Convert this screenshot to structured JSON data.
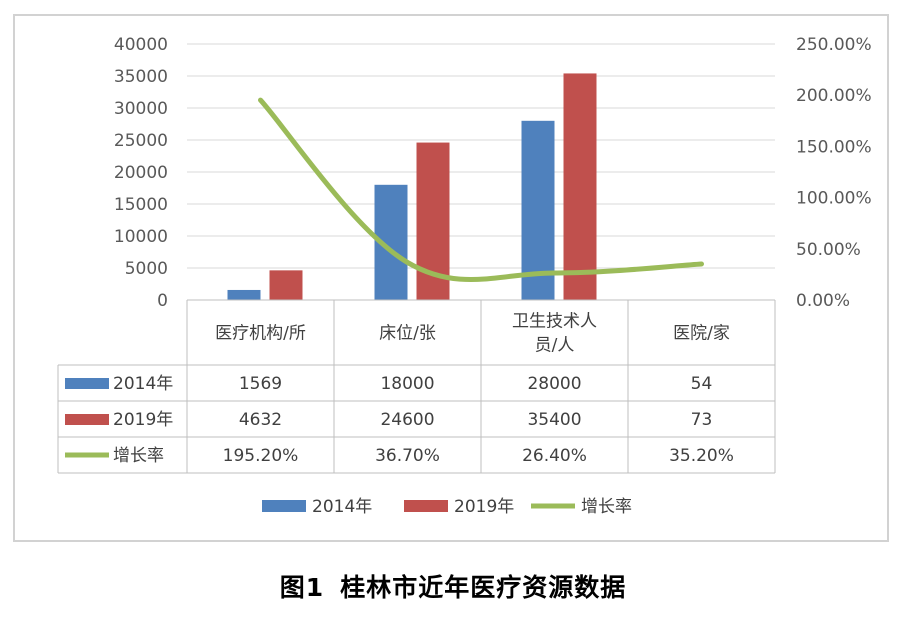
{
  "chart_data": {
    "type": "bar",
    "categories": [
      "医疗机构/所",
      "床位/张",
      "卫生技术人员/人",
      "医院/家"
    ],
    "category_lines": [
      [
        "医疗机构/所"
      ],
      [
        "床位/张"
      ],
      [
        "卫生技术人",
        "员/人"
      ],
      [
        "医院/家"
      ]
    ],
    "series": [
      {
        "name": "2014年",
        "type": "bar",
        "axis": "left",
        "color": "#4f81bd",
        "values": [
          1569,
          18000,
          28000,
          54
        ]
      },
      {
        "name": "2019年",
        "type": "bar",
        "axis": "left",
        "color": "#c0504d",
        "values": [
          4632,
          24600,
          35400,
          73
        ]
      },
      {
        "name": "增长率",
        "type": "line",
        "axis": "right",
        "color": "#9bbb59",
        "values": [
          195.2,
          36.7,
          26.4,
          35.2
        ]
      }
    ],
    "table_values": [
      [
        "1569",
        "18000",
        "28000",
        "54"
      ],
      [
        "4632",
        "24600",
        "35400",
        "73"
      ],
      [
        "195.20%",
        "36.70%",
        "26.40%",
        "35.20%"
      ]
    ],
    "y_left": {
      "min": 0,
      "max": 40000,
      "ticks": [
        "0",
        "5000",
        "10000",
        "15000",
        "20000",
        "25000",
        "30000",
        "35000",
        "40000"
      ]
    },
    "y_right": {
      "min": 0,
      "max": 250,
      "ticks": [
        "0.00%",
        "50.00%",
        "100.00%",
        "150.00%",
        "200.00%",
        "250.00%"
      ]
    },
    "grid": true,
    "legend_position": "bottom",
    "data_table": true
  },
  "caption": {
    "label": "图1",
    "text": "桂林市近年医疗资源数据"
  }
}
